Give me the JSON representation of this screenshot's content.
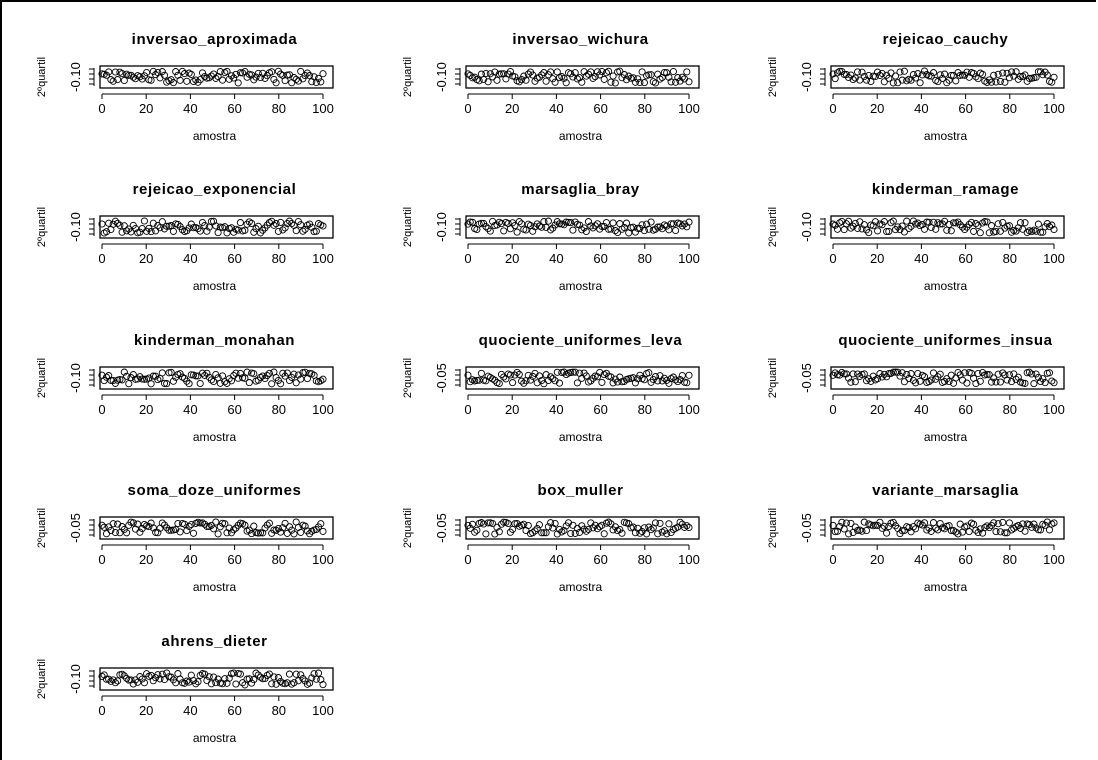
{
  "chart_data": [
    {
      "type": "scatter",
      "title": "inversao_aproximada",
      "xlabel": "amostra",
      "ylabel": "2ºquartil",
      "xlim": [
        0,
        100
      ],
      "xticks": [
        0,
        20,
        40,
        60,
        80,
        100
      ],
      "ytick_label": "-0.10",
      "seed": 11
    },
    {
      "type": "scatter",
      "title": "inversao_wichura",
      "xlabel": "amostra",
      "ylabel": "2ºquartil",
      "xlim": [
        0,
        100
      ],
      "xticks": [
        0,
        20,
        40,
        60,
        80,
        100
      ],
      "ytick_label": "-0.10",
      "seed": 23
    },
    {
      "type": "scatter",
      "title": "rejeicao_cauchy",
      "xlabel": "amostra",
      "ylabel": "2ºquartil",
      "xlim": [
        0,
        100
      ],
      "xticks": [
        0,
        20,
        40,
        60,
        80,
        100
      ],
      "ytick_label": "-0.10",
      "seed": 37
    },
    {
      "type": "scatter",
      "title": "rejeicao_exponencial",
      "xlabel": "amostra",
      "ylabel": "2ºquartil",
      "xlim": [
        0,
        100
      ],
      "xticks": [
        0,
        20,
        40,
        60,
        80,
        100
      ],
      "ytick_label": "-0.10",
      "seed": 41
    },
    {
      "type": "scatter",
      "title": "marsaglia_bray",
      "xlabel": "amostra",
      "ylabel": "2ºquartil",
      "xlim": [
        0,
        100
      ],
      "xticks": [
        0,
        20,
        40,
        60,
        80,
        100
      ],
      "ytick_label": "-0.10",
      "seed": 53
    },
    {
      "type": "scatter",
      "title": "kinderman_ramage",
      "xlabel": "amostra",
      "ylabel": "2ºquartil",
      "xlim": [
        0,
        100
      ],
      "xticks": [
        0,
        20,
        40,
        60,
        80,
        100
      ],
      "ytick_label": "-0.10",
      "seed": 67
    },
    {
      "type": "scatter",
      "title": "kinderman_monahan",
      "xlabel": "amostra",
      "ylabel": "2ºquartil",
      "xlim": [
        0,
        100
      ],
      "xticks": [
        0,
        20,
        40,
        60,
        80,
        100
      ],
      "ytick_label": "-0.10",
      "seed": 71
    },
    {
      "type": "scatter",
      "title": "quociente_uniformes_leva",
      "xlabel": "amostra",
      "ylabel": "2ºquartil",
      "xlim": [
        0,
        100
      ],
      "xticks": [
        0,
        20,
        40,
        60,
        80,
        100
      ],
      "ytick_label": "-0.05",
      "seed": 83
    },
    {
      "type": "scatter",
      "title": "quociente_uniformes_insua",
      "xlabel": "amostra",
      "ylabel": "2ºquartil",
      "xlim": [
        0,
        100
      ],
      "xticks": [
        0,
        20,
        40,
        60,
        80,
        100
      ],
      "ytick_label": "-0.05",
      "seed": 97
    },
    {
      "type": "scatter",
      "title": "soma_doze_uniformes",
      "xlabel": "amostra",
      "ylabel": "2ºquartil",
      "xlim": [
        0,
        100
      ],
      "xticks": [
        0,
        20,
        40,
        60,
        80,
        100
      ],
      "ytick_label": "-0.05",
      "seed": 101
    },
    {
      "type": "scatter",
      "title": "box_muller",
      "xlabel": "amostra",
      "ylabel": "2ºquartil",
      "xlim": [
        0,
        100
      ],
      "xticks": [
        0,
        20,
        40,
        60,
        80,
        100
      ],
      "ytick_label": "-0.05",
      "seed": 113
    },
    {
      "type": "scatter",
      "title": "variante_marsaglia",
      "xlabel": "amostra",
      "ylabel": "2ºquartil",
      "xlim": [
        0,
        100
      ],
      "xticks": [
        0,
        20,
        40,
        60,
        80,
        100
      ],
      "ytick_label": "-0.05",
      "seed": 127
    },
    {
      "type": "scatter",
      "title": "ahrens_dieter",
      "xlabel": "amostra",
      "ylabel": "2ºquartil",
      "xlim": [
        0,
        100
      ],
      "xticks": [
        0,
        20,
        40,
        60,
        80,
        100
      ],
      "ytick_label": "-0.10",
      "seed": 131
    }
  ]
}
